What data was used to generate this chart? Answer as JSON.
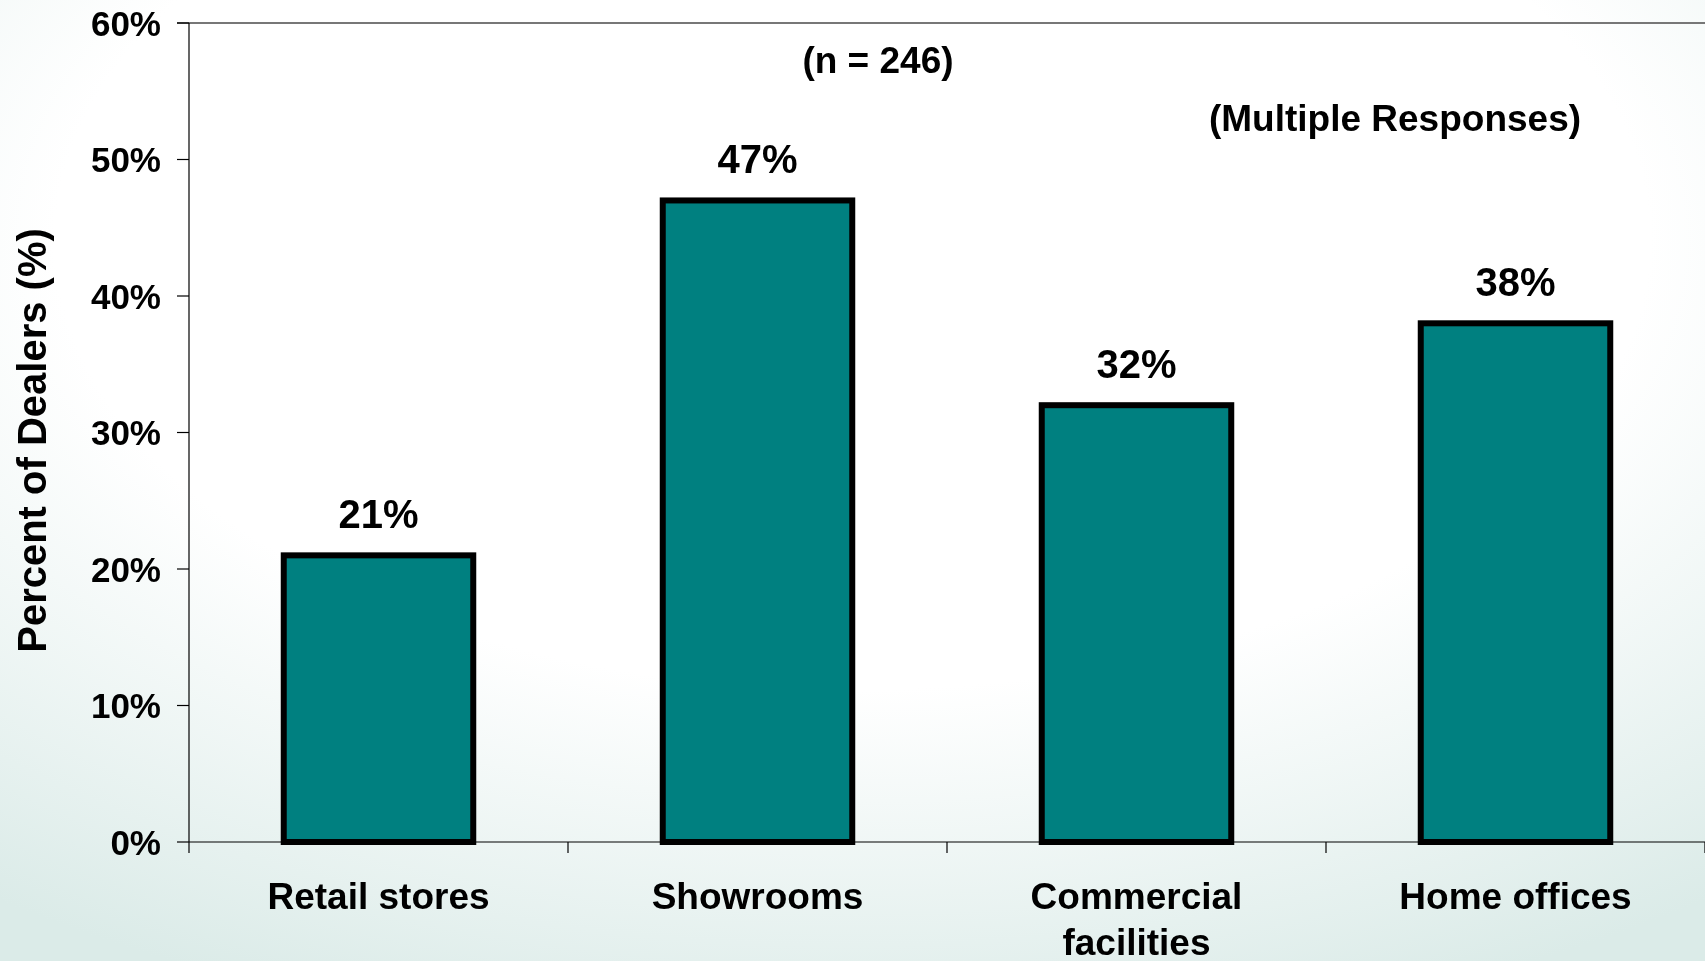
{
  "chart_data": {
    "type": "bar",
    "ylabel": "Percent of Dealers (%)",
    "categories": [
      "Retail stores",
      "Showrooms",
      "Commercial facilities",
      "Home offices"
    ],
    "values": [
      21,
      47,
      32,
      38
    ],
    "color": "#008080",
    "value_labels": [
      "21%",
      "47%",
      "32%",
      "38%"
    ],
    "ylim": [
      0,
      60
    ],
    "yticks": [
      {
        "value": 0,
        "label": "0%"
      },
      {
        "value": 10,
        "label": "10%"
      },
      {
        "value": 20,
        "label": "20%"
      },
      {
        "value": 30,
        "label": "30%"
      },
      {
        "value": 40,
        "label": "40%"
      },
      {
        "value": 50,
        "label": "50%"
      },
      {
        "value": 60,
        "label": "60%"
      }
    ],
    "annotations": [
      "(n = 246)",
      "(Multiple Responses)"
    ]
  }
}
